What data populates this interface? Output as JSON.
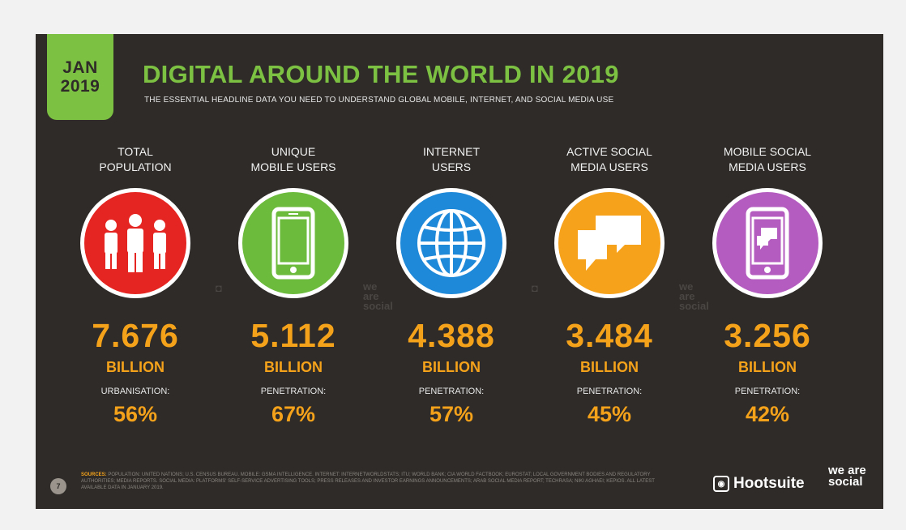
{
  "date": {
    "month": "JAN",
    "year": "2019"
  },
  "title": "DIGITAL AROUND THE WORLD IN 2019",
  "subtitle": "THE ESSENTIAL HEADLINE DATA YOU NEED TO UNDERSTAND GLOBAL MOBILE, INTERNET, AND SOCIAL MEDIA USE",
  "stats": [
    {
      "label": "TOTAL\nPOPULATION",
      "icon": "people-icon",
      "color": "#e52521",
      "value": "7.676",
      "unit": "BILLION",
      "metric": "URBANISATION:",
      "pct": "56%"
    },
    {
      "label": "UNIQUE\nMOBILE USERS",
      "icon": "mobile-phone-icon",
      "color": "#6cbb3c",
      "value": "5.112",
      "unit": "BILLION",
      "metric": "PENETRATION:",
      "pct": "67%"
    },
    {
      "label": "INTERNET\nUSERS",
      "icon": "globe-icon",
      "color": "#1e88d9",
      "value": "4.388",
      "unit": "BILLION",
      "metric": "PENETRATION:",
      "pct": "57%"
    },
    {
      "label": "ACTIVE SOCIAL\nMEDIA USERS",
      "icon": "chat-bubbles-icon",
      "color": "#f7a21b",
      "value": "3.484",
      "unit": "BILLION",
      "metric": "PENETRATION:",
      "pct": "45%"
    },
    {
      "label": "MOBILE SOCIAL\nMEDIA USERS",
      "icon": "mobile-chat-icon",
      "color": "#b45cbf",
      "value": "3.256",
      "unit": "BILLION",
      "metric": "PENETRATION:",
      "pct": "42%"
    }
  ],
  "footer": {
    "page": "7",
    "sources_label": "SOURCES:",
    "sources_text": "POPULATION: UNITED NATIONS; U.S. CENSUS BUREAU. MOBILE: GSMA INTELLIGENCE. INTERNET: INTERNETWORLDSTATS; ITU; WORLD BANK; CIA WORLD FACTBOOK; EUROSTAT; LOCAL GOVERNMENT BODIES AND REGULATORY AUTHORITIES; MEDIA REPORTS. SOCIAL MEDIA: PLATFORMS' SELF-SERVICE ADVERTISING TOOLS; PRESS RELEASES AND INVESTOR EARNINGS ANNOUNCEMENTS; ARAB SOCIAL MEDIA REPORT; TECHRASA; NIKI AGHAEI; KEPIOS. ALL LATEST AVAILABLE DATA IN JANUARY 2019.",
    "hootsuite": "Hootsuite",
    "wearesocial": "we are social"
  },
  "colors": {
    "background": "#2e2b28",
    "accent_green": "#7dc142",
    "accent_orange": "#f5a21b"
  }
}
